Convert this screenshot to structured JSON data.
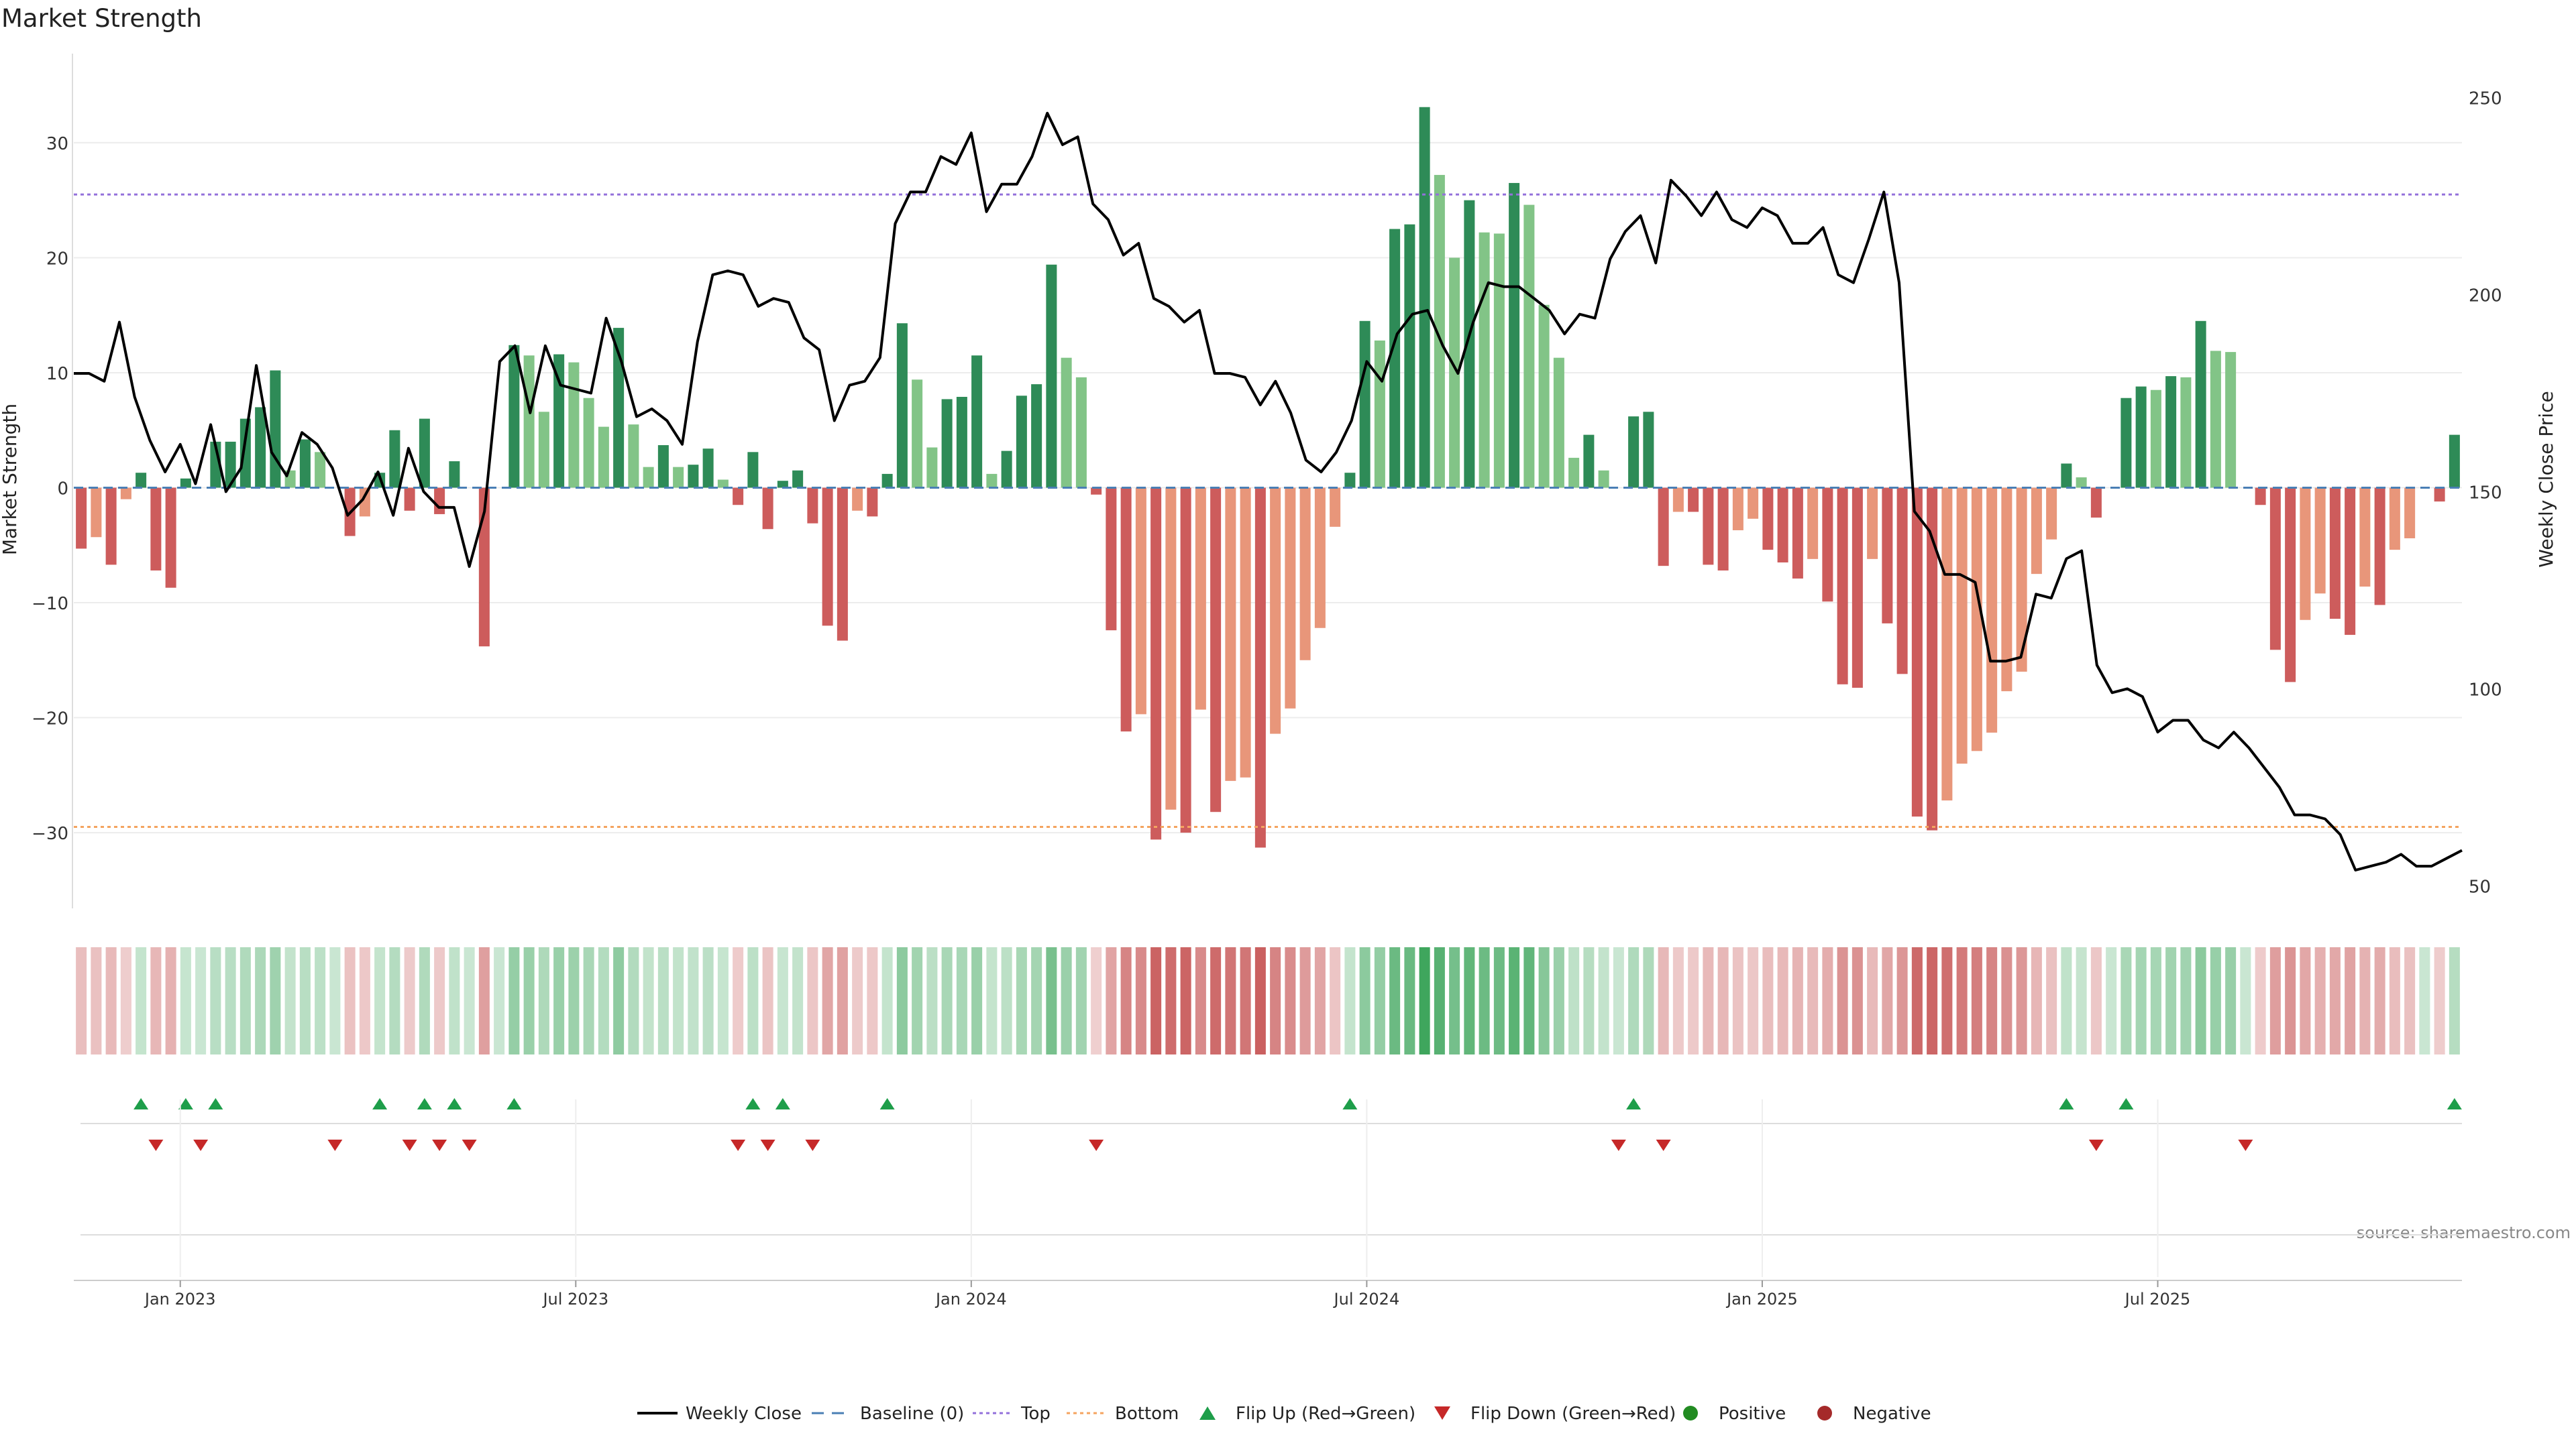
{
  "chart_data": {
    "type": "bar",
    "title": "Market Strength",
    "ylabel_left": "Market Strength",
    "ylabel_right": "Weekly Close Price",
    "xlabel": "",
    "ylim_left": [
      -36,
      36
    ],
    "ylim_right": [
      46,
      256
    ],
    "yticks_left": [
      "30",
      "20",
      "10",
      "0",
      "−10",
      "−20",
      "−30"
    ],
    "yticks_right": [
      "250",
      "200",
      "150",
      "100",
      "50"
    ],
    "x_tick_labels": [
      "Jan 2023",
      "Jul 2023",
      "Jan 2024",
      "Jul 2024",
      "Jan 2025",
      "Jul 2025"
    ],
    "x_ticks_week": [
      7,
      33,
      59,
      85,
      111,
      137
    ],
    "top_threshold": 25.5,
    "bottom_threshold": -29.5,
    "source_text": "source: sharemaestro.com",
    "grid": true,
    "legend_position": "bottom-center",
    "colors": {
      "pos_dark": "#2e8b57",
      "pos_light": "#82c487",
      "neg_dark": "#cd5c5c",
      "neg_light": "#e8967a",
      "line": "#000000",
      "baseline": "#4a7fb5",
      "top": "#9370db",
      "bottom": "#f4a460",
      "flip_up": "#1e9e4a",
      "flip_down": "#c62828",
      "positive": "#228b22",
      "negative": "#a52a2a"
    },
    "legend": [
      {
        "label": "Weekly Close",
        "kind": "line",
        "color": "#000000"
      },
      {
        "label": "Baseline (0)",
        "kind": "dash",
        "color": "#4a7fb5"
      },
      {
        "label": "Top",
        "kind": "dot",
        "color": "#9370db"
      },
      {
        "label": "Bottom",
        "kind": "dot",
        "color": "#f4a460"
      },
      {
        "label": "Flip Up (Red→Green)",
        "kind": "tri-up",
        "color": "#1e9e4a"
      },
      {
        "label": "Flip Down (Green→Red)",
        "kind": "tri-down",
        "color": "#c62828"
      },
      {
        "label": "Positive",
        "kind": "circle",
        "color": "#228b22"
      },
      {
        "label": "Negative",
        "kind": "circle",
        "color": "#a52a2a"
      }
    ],
    "strength": [
      -5.3,
      -4.3,
      -6.7,
      -1,
      1.3,
      -7.2,
      -8.7,
      0.8,
      0,
      4,
      4,
      6,
      7,
      10.2,
      1.5,
      4.2,
      3.1,
      0,
      -4.2,
      -2.5,
      1.3,
      5,
      -2,
      6,
      -2.3,
      2.3,
      0,
      -13.8,
      0,
      12.4,
      11.5,
      6.6,
      11.6,
      10.9,
      7.8,
      5.3,
      13.9,
      5.5,
      1.8,
      3.7,
      1.8,
      2,
      3.4,
      0.7,
      -1.5,
      3.1,
      -3.6,
      0.6,
      1.5,
      -3.1,
      -12,
      -13.3,
      -2,
      -2.5,
      1.2,
      14.3,
      9.4,
      3.5,
      7.7,
      7.9,
      11.5,
      1.2,
      3.2,
      8,
      9,
      19.4,
      11.3,
      9.6,
      -0.6,
      -12.4,
      -21.2,
      -19.7,
      -30.6,
      -28,
      -30,
      -19.3,
      -28.2,
      -25.5,
      -25.2,
      -31.3,
      -21.4,
      -19.2,
      -15,
      -12.2,
      -3.4,
      1.3,
      14.5,
      12.8,
      22.5,
      22.9,
      33.1,
      27.2,
      20,
      25,
      22.2,
      22.1,
      26.5,
      24.6,
      15.9,
      11.3,
      2.6,
      4.6,
      1.5,
      0,
      6.2,
      6.6,
      -6.8,
      -2.1,
      -2.1,
      -6.7,
      -7.2,
      -3.7,
      -2.7,
      -5.4,
      -6.5,
      -7.9,
      -6.2,
      -9.9,
      -17.1,
      -17.4,
      -6.2,
      -11.8,
      -16.2,
      -28.6,
      -29.8,
      -27.2,
      -24,
      -22.9,
      -21.3,
      -17.7,
      -16,
      -7.5,
      -4.5,
      2.1,
      0.9,
      -2.6,
      0,
      7.8,
      8.8,
      8.5,
      9.7,
      9.6,
      14.5,
      11.9,
      11.8,
      0,
      -1.5,
      -14.1,
      -16.9,
      -11.5,
      -9.2,
      -11.4,
      -12.8,
      -8.6,
      -10.2,
      -5.4,
      -4.4,
      0,
      -1.2,
      4.6
    ],
    "weekly_close": [
      180,
      180,
      178,
      193,
      174,
      163,
      155,
      162,
      152,
      167,
      150,
      156,
      182,
      160,
      154,
      165,
      162,
      156,
      144,
      148,
      155,
      144,
      161,
      150,
      146,
      146,
      131,
      145,
      183,
      187,
      170,
      187,
      177,
      176,
      175,
      194,
      183,
      169,
      171,
      168,
      162,
      188,
      205,
      206,
      205,
      197,
      199,
      198,
      189,
      186,
      168,
      177,
      178,
      184,
      218,
      226,
      226,
      235,
      233,
      241,
      221,
      228,
      228,
      235,
      246,
      238,
      240,
      223,
      219,
      210,
      213,
      199,
      197,
      193,
      196,
      180,
      180,
      179,
      172,
      178,
      170,
      158,
      155,
      160,
      168,
      183,
      178,
      190,
      195,
      196,
      187,
      180,
      193,
      203,
      202,
      202,
      199,
      196,
      190,
      195,
      194,
      209,
      216,
      220,
      208,
      229,
      225,
      220,
      226,
      219,
      217,
      222,
      220,
      213,
      213,
      217,
      205,
      203,
      214,
      226,
      203,
      145,
      140,
      129,
      129,
      127,
      107,
      107,
      108,
      124,
      123,
      133,
      135,
      106,
      99,
      100,
      98,
      89,
      92,
      92,
      87,
      85,
      89,
      85,
      80,
      75,
      68,
      68,
      67,
      63,
      54,
      55,
      56,
      58,
      55,
      55,
      57,
      59
    ]
  }
}
